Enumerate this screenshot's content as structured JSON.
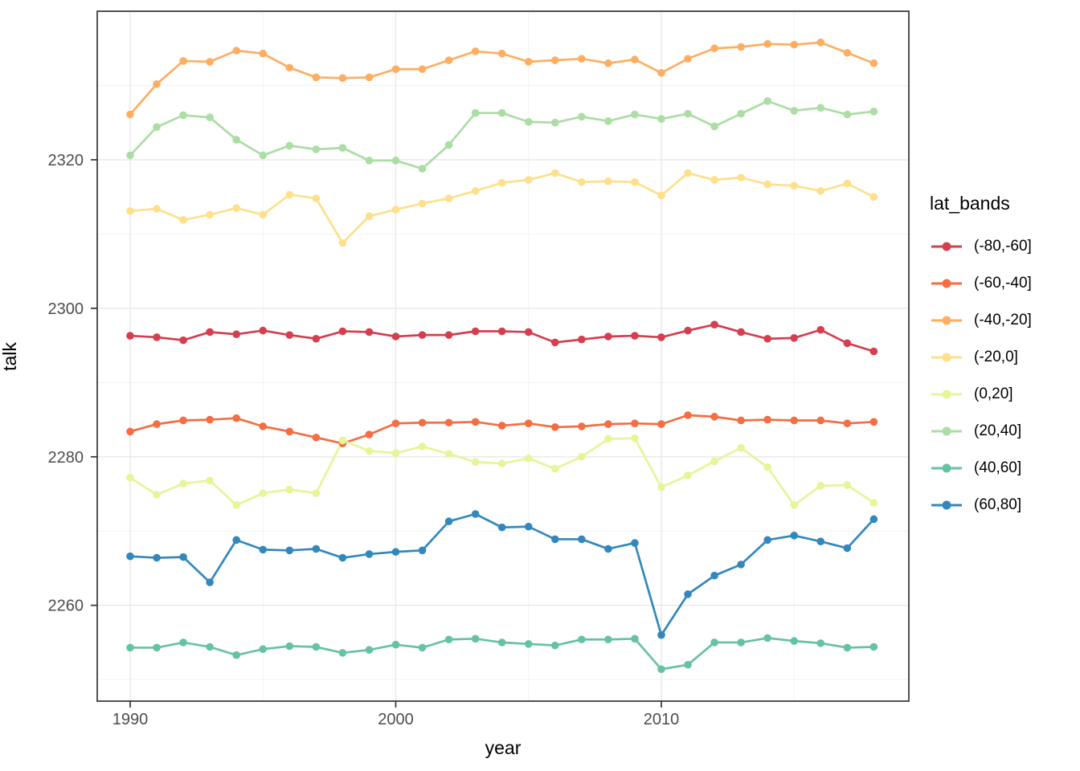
{
  "figure": {
    "background": "#ffffff"
  },
  "chart_data": {
    "type": "line",
    "title": "",
    "xlabel": "year",
    "ylabel": "talk",
    "legend_title": "lat_bands",
    "legend_position": "right",
    "grid": true,
    "x_range": [
      1988.76,
      2019.32
    ],
    "y_range": [
      2247.1,
      2340.0
    ],
    "x_ticks": [
      1990,
      2000,
      2010
    ],
    "x_minor_ticks": [
      1995,
      2005,
      2015
    ],
    "y_ticks": [
      2260,
      2280,
      2300,
      2320
    ],
    "y_minor_ticks": [
      2250,
      2270,
      2290,
      2310,
      2330
    ],
    "x": [
      1990,
      1991,
      1992,
      1993,
      1994,
      1995,
      1996,
      1997,
      1998,
      1999,
      2000,
      2001,
      2002,
      2003,
      2004,
      2005,
      2006,
      2007,
      2008,
      2009,
      2010,
      2011,
      2012,
      2013,
      2014,
      2015,
      2016,
      2017,
      2018
    ],
    "series": [
      {
        "name": "(-80,-60]",
        "color": "#d53e4f",
        "values": [
          2296.3,
          2296.1,
          2295.7,
          2296.8,
          2296.5,
          2297.0,
          2296.4,
          2295.9,
          2296.9,
          2296.8,
          2296.2,
          2296.4,
          2296.4,
          2296.9,
          2296.9,
          2296.8,
          2295.4,
          2295.8,
          2296.2,
          2296.3,
          2296.1,
          2297.0,
          2297.8,
          2296.8,
          2295.9,
          2296.0,
          2297.1,
          2295.3,
          2294.2
        ]
      },
      {
        "name": "(-60,-40]",
        "color": "#f46d43",
        "values": [
          2283.4,
          2284.4,
          2284.9,
          2285.0,
          2285.2,
          2284.1,
          2283.4,
          2282.6,
          2281.8,
          2283.0,
          2284.5,
          2284.6,
          2284.6,
          2284.7,
          2284.2,
          2284.5,
          2284.0,
          2284.1,
          2284.4,
          2284.5,
          2284.4,
          2285.6,
          2285.4,
          2284.9,
          2285.0,
          2284.9,
          2284.9,
          2284.5,
          2284.7
        ]
      },
      {
        "name": "(-40,-20]",
        "color": "#fdae61",
        "values": [
          2326.1,
          2330.2,
          2333.3,
          2333.2,
          2334.7,
          2334.3,
          2332.4,
          2331.1,
          2331.0,
          2331.1,
          2332.2,
          2332.2,
          2333.4,
          2334.6,
          2334.3,
          2333.2,
          2333.4,
          2333.6,
          2333.0,
          2333.5,
          2331.7,
          2333.6,
          2335.0,
          2335.2,
          2335.6,
          2335.5,
          2335.8,
          2334.4,
          2333.0
        ]
      },
      {
        "name": "(-20,0]",
        "color": "#fee08b",
        "values": [
          2313.1,
          2313.4,
          2311.9,
          2312.6,
          2313.5,
          2312.6,
          2315.3,
          2314.8,
          2308.8,
          2312.4,
          2313.3,
          2314.1,
          2314.8,
          2315.8,
          2316.9,
          2317.3,
          2318.2,
          2317.0,
          2317.1,
          2317.0,
          2315.2,
          2318.2,
          2317.3,
          2317.6,
          2316.7,
          2316.5,
          2315.8,
          2316.8,
          2315.0
        ]
      },
      {
        "name": "(0,20]",
        "color": "#e6f598",
        "values": [
          2277.2,
          2274.9,
          2276.4,
          2276.8,
          2273.5,
          2275.1,
          2275.6,
          2275.1,
          2282.2,
          2280.8,
          2280.5,
          2281.4,
          2280.4,
          2279.3,
          2279.1,
          2279.8,
          2278.4,
          2280.0,
          2282.4,
          2282.5,
          2275.9,
          2277.5,
          2279.4,
          2281.2,
          2278.6,
          2273.5,
          2276.1,
          2276.2,
          2273.8
        ]
      },
      {
        "name": "(20,40]",
        "color": "#abdda4",
        "values": [
          2320.6,
          2324.4,
          2326.0,
          2325.7,
          2322.7,
          2320.6,
          2321.9,
          2321.4,
          2321.6,
          2319.9,
          2319.9,
          2318.8,
          2322.0,
          2326.3,
          2326.3,
          2325.1,
          2325.0,
          2325.8,
          2325.2,
          2326.1,
          2325.5,
          2326.2,
          2324.5,
          2326.2,
          2327.9,
          2326.6,
          2327.0,
          2326.1,
          2326.5
        ]
      },
      {
        "name": "(40,60]",
        "color": "#66c2a5",
        "values": [
          2254.3,
          2254.3,
          2255.0,
          2254.4,
          2253.3,
          2254.1,
          2254.5,
          2254.4,
          2253.6,
          2254.0,
          2254.7,
          2254.3,
          2255.4,
          2255.5,
          2255.0,
          2254.8,
          2254.6,
          2255.4,
          2255.4,
          2255.5,
          2251.4,
          2252.0,
          2255.0,
          2255.0,
          2255.6,
          2255.2,
          2254.9,
          2254.3,
          2254.4
        ]
      },
      {
        "name": "(60,80]",
        "color": "#3288bd",
        "values": [
          2266.6,
          2266.4,
          2266.5,
          2263.1,
          2268.8,
          2267.5,
          2267.4,
          2267.6,
          2266.4,
          2266.9,
          2267.2,
          2267.4,
          2271.3,
          2272.3,
          2270.5,
          2270.6,
          2268.9,
          2268.9,
          2267.6,
          2268.4,
          2256.0,
          2261.5,
          2264.0,
          2265.5,
          2268.8,
          2269.4,
          2268.6,
          2267.7,
          2271.6
        ]
      }
    ]
  },
  "colors": {
    "panel_border": "#333333",
    "grid_major": "#e8e8e8",
    "grid_minor": "#f2f2f2",
    "tick_mark": "#333333",
    "tick_text": "#4d4d4d",
    "axis_title": "#000000"
  }
}
